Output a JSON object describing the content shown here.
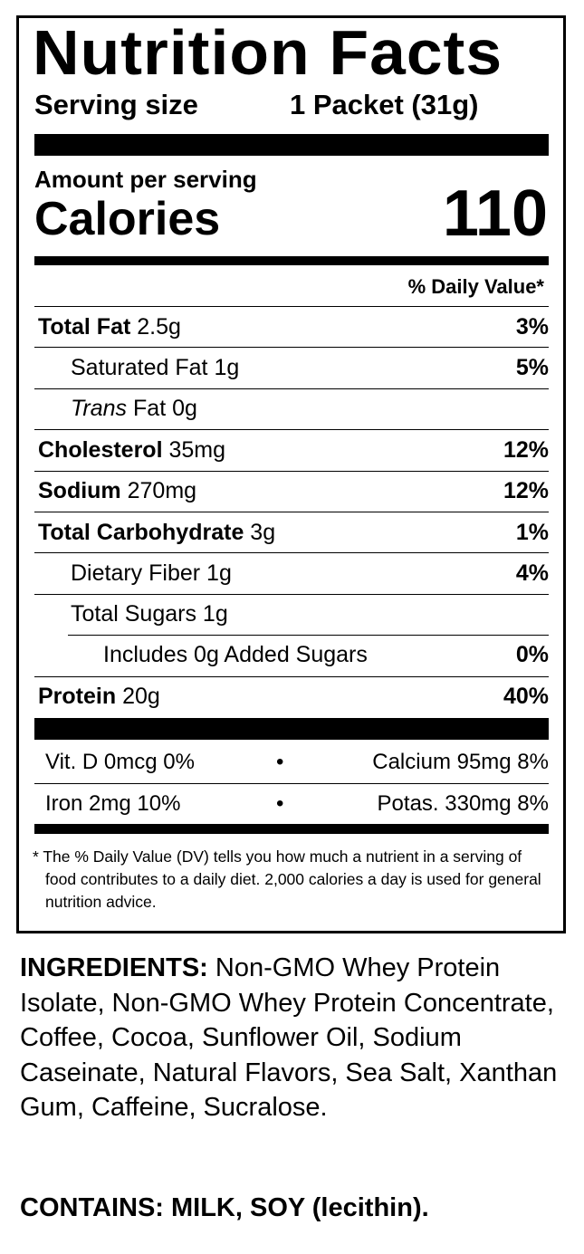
{
  "title": "Nutrition Facts",
  "serving": {
    "label": "Serving size",
    "value": "1 Packet (31g)"
  },
  "amount_per_serving": "Amount per serving",
  "calories": {
    "label": "Calories",
    "value": "110"
  },
  "dv_header": "% Daily Value*",
  "nutrients": [
    {
      "name": "Total Fat",
      "amount": "2.5g",
      "dv": "3%"
    },
    {
      "name": "Saturated Fat",
      "amount": "1g",
      "dv": "5%"
    },
    {
      "name": "Trans",
      "name_rest": "Fat",
      "amount": "0g",
      "dv": ""
    },
    {
      "name": "Cholesterol",
      "amount": "35mg",
      "dv": "12%"
    },
    {
      "name": "Sodium",
      "amount": "270mg",
      "dv": "12%"
    },
    {
      "name": "Total Carbohydrate",
      "amount": "3g",
      "dv": "1%"
    },
    {
      "name": "Dietary Fiber",
      "amount": "1g",
      "dv": "4%"
    },
    {
      "name": "Total Sugars",
      "amount": "1g",
      "dv": ""
    },
    {
      "name": "Includes 0g Added Sugars",
      "dv": "0%"
    },
    {
      "name": "Protein",
      "amount": "20g",
      "dv": "40%"
    }
  ],
  "vitamins": [
    {
      "left": "Vit. D 0mcg 0%",
      "bullet": "•",
      "right": "Calcium 95mg 8%"
    },
    {
      "left": "Iron 2mg 10%",
      "bullet": "•",
      "right": "Potas. 330mg 8%"
    }
  ],
  "footnote": "* The % Daily Value (DV) tells you how much a nutrient in a serving of food contributes to a daily diet. 2,000 calories a day is used for general nutrition advice.",
  "ingredients": {
    "label": "INGREDIENTS:",
    "text": "Non-GMO Whey Protein Isolate, Non-GMO Whey Protein Concentrate, Coffee, Cocoa, Sunflower Oil, Sodium Caseinate, Natural Flavors, Sea Salt, Xanthan Gum, Caffeine, Sucralose."
  },
  "contains": "CONTAINS: MILK, SOY (lecithin)."
}
